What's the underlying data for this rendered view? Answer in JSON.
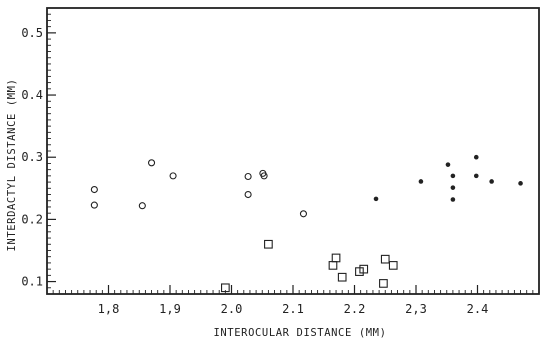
{
  "chart_data": {
    "type": "scatter",
    "title": "",
    "xlabel": "INTEROCULAR DISTANCE (MM)",
    "ylabel": "INTERDACTYL DISTANCE (MM)",
    "xlim": [
      1.7,
      2.5
    ],
    "ylim": [
      0.08,
      0.54
    ],
    "x_ticks": [
      1.8,
      1.9,
      2.0,
      2.1,
      2.2,
      2.3,
      2.4
    ],
    "x_tick_labels": [
      "1,8",
      "1,9",
      "2.0",
      "2.1",
      "2.2",
      "2,3",
      "2.4"
    ],
    "y_ticks": [
      0.1,
      0.2,
      0.3,
      0.4,
      0.5
    ],
    "y_tick_labels": [
      "0.1",
      "0.2",
      "0.3",
      "0.4",
      "0.5"
    ],
    "grid": false,
    "legend": "none",
    "series": [
      {
        "marker": "open-circle",
        "points": [
          [
            1.777,
            0.248
          ],
          [
            1.777,
            0.223
          ],
          [
            1.87,
            0.291
          ],
          [
            1.905,
            0.27
          ],
          [
            1.855,
            0.222
          ],
          [
            2.027,
            0.269
          ],
          [
            2.051,
            0.274
          ],
          [
            2.053,
            0.27
          ],
          [
            2.027,
            0.24
          ],
          [
            2.117,
            0.209
          ]
        ]
      },
      {
        "marker": "open-square",
        "points": [
          [
            2.06,
            0.16
          ],
          [
            2.17,
            0.138
          ],
          [
            2.165,
            0.126
          ],
          [
            2.18,
            0.107
          ],
          [
            2.208,
            0.116
          ],
          [
            2.215,
            0.12
          ],
          [
            2.25,
            0.136
          ],
          [
            2.263,
            0.126
          ],
          [
            2.247,
            0.097
          ],
          [
            1.99,
            0.09
          ]
        ]
      },
      {
        "marker": "filled-dot",
        "points": [
          [
            2.235,
            0.233
          ],
          [
            2.308,
            0.261
          ],
          [
            2.352,
            0.288
          ],
          [
            2.36,
            0.27
          ],
          [
            2.36,
            0.251
          ],
          [
            2.36,
            0.232
          ],
          [
            2.398,
            0.3
          ],
          [
            2.398,
            0.27
          ],
          [
            2.423,
            0.261
          ],
          [
            2.47,
            0.258
          ]
        ]
      }
    ],
    "colors": {
      "ink": "#222222",
      "background": "#ffffff"
    }
  }
}
